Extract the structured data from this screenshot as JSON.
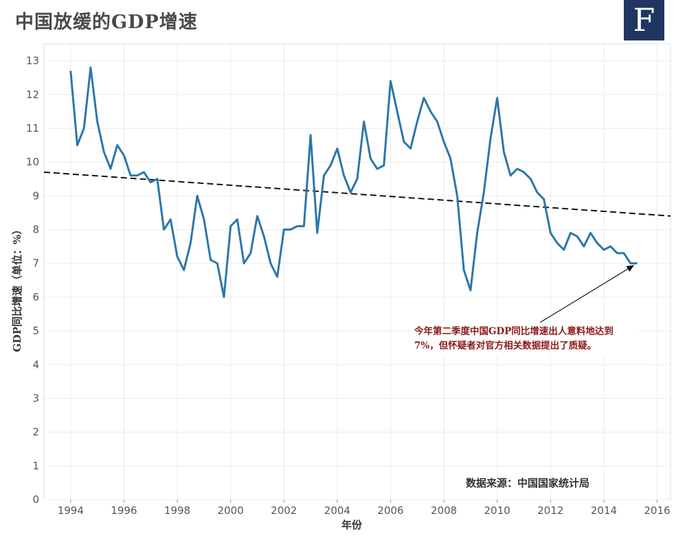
{
  "title": "中国放缓的GDP增速",
  "logo_letter": "F",
  "source": "数据来源：中国国家统计局",
  "annotation": "今年第二季度中国GDP同比增速出人意料地达到7%，但怀疑者对官方相关数据提出了质疑。",
  "colors": {
    "line": "#2b77a8",
    "trend": "#111111",
    "logo_bg": "#1f3760",
    "annotation_text": "#8b1a1a"
  },
  "chart_data": {
    "type": "line",
    "xlabel": "年份",
    "ylabel": "GDP同比增速（单位：%）",
    "xlim": [
      1993.0,
      2016.5
    ],
    "ylim": [
      0,
      13.5
    ],
    "x_ticks": [
      1994,
      1996,
      1998,
      2000,
      2002,
      2004,
      2006,
      2008,
      2010,
      2012,
      2014,
      2016
    ],
    "y_ticks": [
      0,
      1,
      2,
      3,
      4,
      5,
      6,
      7,
      8,
      9,
      10,
      11,
      12,
      13
    ],
    "grid": true,
    "series": [
      {
        "x": [
          1994.0,
          1994.25,
          1994.5,
          1994.75,
          1995.0,
          1995.25,
          1995.5,
          1995.75,
          1996.0,
          1996.25,
          1996.5,
          1996.75,
          1997.0,
          1997.25,
          1997.5,
          1997.75,
          1998.0,
          1998.25,
          1998.5,
          1998.75,
          1999.0,
          1999.25,
          1999.5,
          1999.75,
          2000.0,
          2000.25,
          2000.5,
          2000.75,
          2001.0,
          2001.25,
          2001.5,
          2001.75,
          2002.0,
          2002.25,
          2002.5,
          2002.75,
          2003.0,
          2003.25,
          2003.5,
          2003.75,
          2004.0,
          2004.25,
          2004.5,
          2004.75,
          2005.0,
          2005.25,
          2005.5,
          2005.75,
          2006.0,
          2006.25,
          2006.5,
          2006.75,
          2007.0,
          2007.25,
          2007.5,
          2007.75,
          2008.0,
          2008.25,
          2008.5,
          2008.75,
          2009.0,
          2009.25,
          2009.5,
          2009.75,
          2010.0,
          2010.25,
          2010.5,
          2010.75,
          2011.0,
          2011.25,
          2011.5,
          2011.75,
          2012.0,
          2012.25,
          2012.5,
          2012.75,
          2013.0,
          2013.25,
          2013.5,
          2013.75,
          2014.0,
          2014.25,
          2014.5,
          2014.75,
          2015.0,
          2015.25
        ],
        "y": [
          12.7,
          10.5,
          11.0,
          12.8,
          11.2,
          10.3,
          9.8,
          10.5,
          10.2,
          9.6,
          9.6,
          9.7,
          9.4,
          9.5,
          8.0,
          8.3,
          7.2,
          6.8,
          7.6,
          9.0,
          8.3,
          7.1,
          7.0,
          6.0,
          8.1,
          8.3,
          7.0,
          7.3,
          8.4,
          7.8,
          7.0,
          6.6,
          8.0,
          8.0,
          8.1,
          8.1,
          10.8,
          7.9,
          9.6,
          9.9,
          10.4,
          9.6,
          9.1,
          9.5,
          11.2,
          10.1,
          9.8,
          9.9,
          12.4,
          11.5,
          10.6,
          10.4,
          11.2,
          11.9,
          11.5,
          11.2,
          10.6,
          10.1,
          9.0,
          6.8,
          6.2,
          7.9,
          9.1,
          10.7,
          11.9,
          10.3,
          9.6,
          9.8,
          9.7,
          9.5,
          9.1,
          8.9,
          7.9,
          7.6,
          7.4,
          7.9,
          7.8,
          7.5,
          7.9,
          7.6,
          7.4,
          7.5,
          7.3,
          7.3,
          7.0,
          7.0
        ]
      },
      {
        "style": "dashed-trend",
        "x": [
          1993.0,
          2016.5
        ],
        "y": [
          9.7,
          8.4
        ]
      }
    ]
  }
}
